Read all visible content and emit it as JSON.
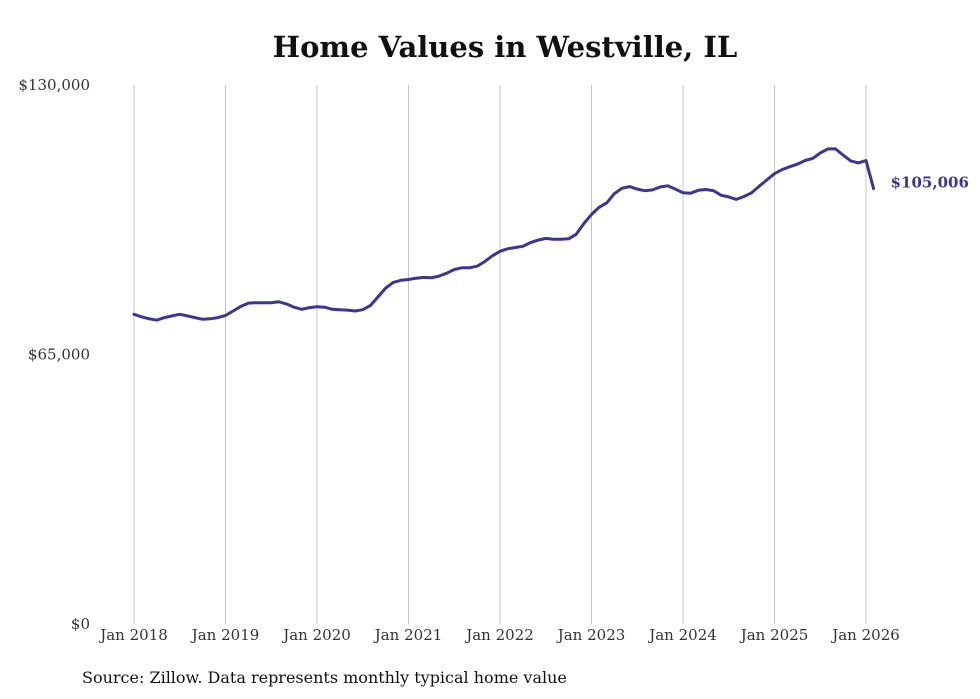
{
  "chart_data": {
    "type": "line",
    "title": "Home Values in Westville, IL",
    "xlabel": "",
    "ylabel": "",
    "ylim": [
      0,
      130000
    ],
    "y_ticks": [
      0,
      65000,
      130000
    ],
    "y_tick_labels": [
      "$0",
      "$65,000",
      "$130,000"
    ],
    "x_tick_labels": [
      "Jan 2018",
      "Jan 2019",
      "Jan 2020",
      "Jan 2021",
      "Jan 2022",
      "Jan 2023",
      "Jan 2024",
      "Jan 2025",
      "Jan 2026"
    ],
    "x_tick_years": [
      2018,
      2019,
      2020,
      2021,
      2022,
      2023,
      2024,
      2025,
      2026
    ],
    "grid": "vertical",
    "line_color": "#3a3596",
    "end_label": "$105,006",
    "series": [
      {
        "name": "Typical home value",
        "x": [
          2018.0,
          2018.083,
          2018.167,
          2018.25,
          2018.333,
          2018.417,
          2018.5,
          2018.583,
          2018.667,
          2018.75,
          2018.833,
          2018.917,
          2019.0,
          2019.083,
          2019.167,
          2019.25,
          2019.333,
          2019.417,
          2019.5,
          2019.583,
          2019.667,
          2019.75,
          2019.833,
          2019.917,
          2020.0,
          2020.083,
          2020.167,
          2020.25,
          2020.333,
          2020.417,
          2020.5,
          2020.583,
          2020.667,
          2020.75,
          2020.833,
          2020.917,
          2021.0,
          2021.083,
          2021.167,
          2021.25,
          2021.333,
          2021.417,
          2021.5,
          2021.583,
          2021.667,
          2021.75,
          2021.833,
          2021.917,
          2022.0,
          2022.083,
          2022.167,
          2022.25,
          2022.333,
          2022.417,
          2022.5,
          2022.583,
          2022.667,
          2022.75,
          2022.833,
          2022.917,
          2023.0,
          2023.083,
          2023.167,
          2023.25,
          2023.333,
          2023.417,
          2023.5,
          2023.583,
          2023.667,
          2023.75,
          2023.833,
          2023.917,
          2024.0,
          2024.083,
          2024.167,
          2024.25,
          2024.333,
          2024.417,
          2024.5,
          2024.583,
          2024.667,
          2024.75,
          2024.833,
          2024.917,
          2025.0,
          2025.083,
          2025.167,
          2025.25,
          2025.333,
          2025.417,
          2025.5,
          2025.583,
          2025.667,
          2025.75,
          2025.833,
          2025.917,
          2026.0,
          2026.083
        ],
        "values": [
          74700,
          74100,
          73600,
          73300,
          73900,
          74300,
          74700,
          74300,
          73900,
          73500,
          73600,
          73900,
          74400,
          75500,
          76600,
          77400,
          77500,
          77500,
          77500,
          77700,
          77200,
          76400,
          75900,
          76300,
          76500,
          76400,
          75900,
          75800,
          75700,
          75500,
          75800,
          76800,
          78900,
          81000,
          82400,
          82900,
          83100,
          83400,
          83600,
          83500,
          83900,
          84600,
          85500,
          85900,
          85900,
          86300,
          87400,
          88800,
          89900,
          90500,
          90800,
          91100,
          92000,
          92600,
          93000,
          92800,
          92800,
          92900,
          94000,
          96600,
          98800,
          100500,
          101600,
          103800,
          105100,
          105500,
          104900,
          104500,
          104700,
          105400,
          105700,
          104900,
          104000,
          103900,
          104600,
          104800,
          104500,
          103400,
          103000,
          102400,
          103100,
          104000,
          105600,
          107100,
          108600,
          109600,
          110300,
          110900,
          111800,
          112300,
          113600,
          114600,
          114600,
          113100,
          111700,
          111200,
          111800,
          105006
        ]
      }
    ]
  },
  "footer": {
    "source": "Source: Zillow. Data represents monthly typical home value"
  }
}
